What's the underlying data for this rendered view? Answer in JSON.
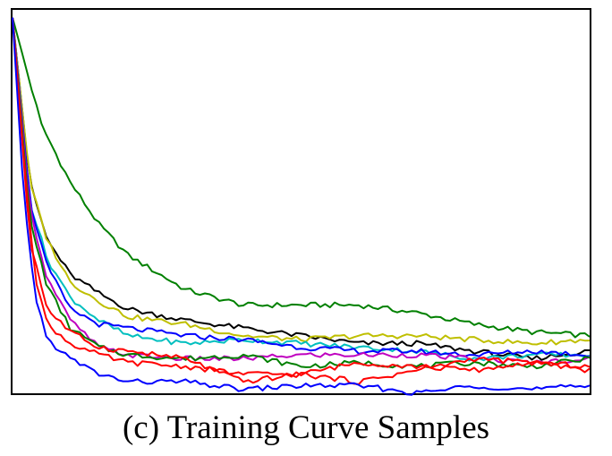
{
  "caption": "(c) Training Curve Samples",
  "chart_data": {
    "type": "line",
    "title": "",
    "xlabel": "",
    "ylabel": "",
    "xlim": [
      0,
      100
    ],
    "ylim": [
      0,
      100
    ],
    "grid": false,
    "legend": "none",
    "series": [
      {
        "color": "#008000",
        "x": [
          0,
          5,
          10,
          15,
          20,
          30,
          40,
          50,
          60,
          70,
          80,
          90,
          100
        ],
        "y": [
          98,
          70,
          55,
          44,
          36,
          27,
          23,
          23,
          23,
          21,
          18,
          16,
          15
        ]
      },
      {
        "color": "#000000",
        "x": [
          0,
          3,
          6,
          10,
          15,
          20,
          30,
          40,
          50,
          60,
          70,
          80,
          90,
          100
        ],
        "y": [
          98,
          55,
          40,
          31,
          26,
          22,
          19,
          17,
          15,
          13,
          13,
          11,
          9,
          11
        ]
      },
      {
        "color": "#bfbf00",
        "x": [
          0,
          3,
          6,
          10,
          15,
          20,
          30,
          40,
          50,
          60,
          70,
          80,
          90,
          100
        ],
        "y": [
          98,
          55,
          40,
          29,
          24,
          20,
          18,
          15,
          14,
          15,
          15,
          14,
          13,
          14
        ]
      },
      {
        "color": "#00bfbf",
        "x": [
          0,
          3,
          6,
          10,
          15,
          20,
          30,
          40,
          50,
          60,
          70,
          80,
          90,
          100
        ],
        "y": [
          98,
          50,
          35,
          25,
          19,
          15,
          13,
          14,
          13,
          12,
          11,
          9,
          10,
          10
        ]
      },
      {
        "color": "#0000ff",
        "x": [
          0,
          3,
          6,
          10,
          15,
          20,
          30,
          40,
          50,
          60,
          70,
          80,
          90,
          100
        ],
        "y": [
          98,
          50,
          33,
          22,
          18,
          17,
          15,
          14,
          12,
          11,
          11,
          10,
          11,
          10
        ]
      },
      {
        "color": "#bf00bf",
        "x": [
          0,
          3,
          6,
          10,
          15,
          20,
          30,
          40,
          50,
          60,
          70,
          80,
          90,
          100
        ],
        "y": [
          98,
          48,
          30,
          19,
          12,
          10,
          9,
          9,
          10,
          10,
          10,
          9,
          8,
          9
        ]
      },
      {
        "color": "#007f00",
        "x": [
          0,
          3,
          6,
          10,
          15,
          20,
          30,
          40,
          50,
          60,
          70,
          80,
          90,
          100
        ],
        "y": [
          98,
          45,
          28,
          17,
          12,
          10,
          9,
          10,
          7,
          8,
          7,
          8,
          7,
          9
        ]
      },
      {
        "color": "#ff0000",
        "x": [
          0,
          2,
          4,
          6,
          10,
          15,
          20,
          30,
          40,
          50,
          60,
          70,
          80,
          90,
          100
        ],
        "y": [
          98,
          60,
          30,
          18,
          13,
          10,
          8,
          7,
          5,
          5,
          8,
          7,
          6,
          8,
          6
        ]
      },
      {
        "color": "#ff0000",
        "x": [
          0,
          3,
          6,
          10,
          15,
          20,
          30,
          40,
          50,
          60,
          70,
          80,
          90,
          100
        ],
        "y": [
          98,
          40,
          22,
          16,
          12,
          11,
          9,
          3,
          5,
          3,
          6,
          9,
          8,
          7
        ]
      },
      {
        "color": "#0000ff",
        "x": [
          0,
          2,
          4,
          6,
          10,
          15,
          20,
          30,
          40,
          50,
          60,
          70,
          80,
          90,
          100
        ],
        "y": [
          98,
          50,
          25,
          14,
          9,
          5,
          3,
          3,
          1,
          2,
          2,
          0,
          2,
          1,
          2
        ]
      }
    ]
  }
}
